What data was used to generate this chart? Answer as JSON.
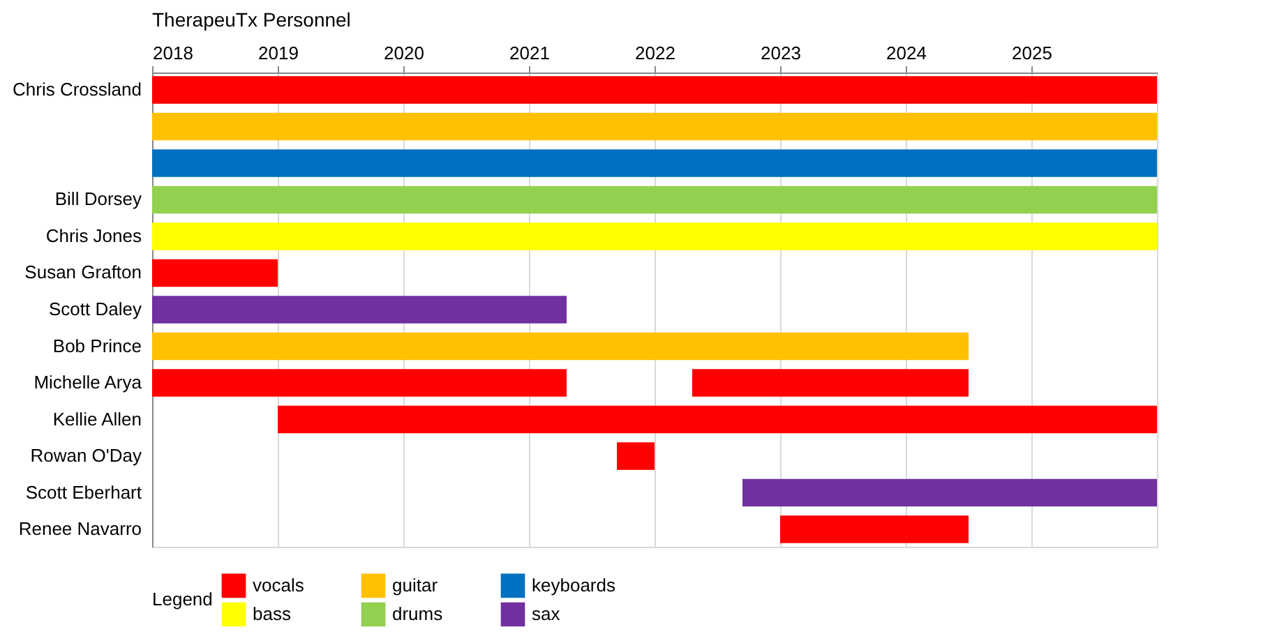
{
  "chart_data": {
    "type": "bar",
    "orientation": "horizontal",
    "title": "TherapeuTx Personnel",
    "legend_title": "Legend",
    "legend": "bottom",
    "grid": "x",
    "categories": [
      "Chris Crossland",
      null,
      null,
      "Bill Dorsey",
      "Chris Jones",
      "Susan Grafton",
      "Scott Daley",
      "Bob Prince",
      "Michelle Arya",
      "Kellie Allen",
      "Rowan O'Day",
      "Scott Eberhart",
      "Renee Navarro"
    ],
    "xlim": [
      2018,
      2026
    ],
    "xticks": [
      2018,
      2019,
      2020,
      2021,
      2022,
      2023,
      2024,
      2025
    ],
    "series": [
      {
        "name": "vocals",
        "color": "#ff0000",
        "values": [
          8,
          null,
          null,
          null,
          null,
          1,
          null,
          null,
          3.3,
          7,
          0.3,
          null,
          1.5
        ],
        "base": [
          2018,
          null,
          null,
          null,
          null,
          2018,
          null,
          null,
          2018,
          2019,
          2021.7,
          null,
          2023
        ]
      },
      {
        "color": "#ff0000",
        "values": [
          null,
          null,
          null,
          null,
          null,
          null,
          null,
          null,
          2.2,
          null,
          null,
          null,
          null
        ],
        "base": [
          null,
          null,
          null,
          null,
          null,
          null,
          null,
          null,
          2022.3,
          null,
          null,
          null,
          null
        ]
      },
      {
        "name": "guitar",
        "color": "#ffc000",
        "values": [
          null,
          8,
          null,
          null,
          null,
          null,
          null,
          6.5,
          null,
          null,
          null,
          null,
          null
        ],
        "base": [
          null,
          2018,
          null,
          null,
          null,
          null,
          null,
          2018,
          null,
          null,
          null,
          null,
          null
        ]
      },
      {
        "name": "keyboards",
        "color": "#0070c0",
        "values": [
          null,
          null,
          8,
          null,
          null,
          null,
          null,
          null,
          null,
          null,
          null,
          null,
          null
        ],
        "base": [
          null,
          null,
          2018,
          null,
          null,
          null,
          null,
          null,
          null,
          null,
          null,
          null,
          null
        ]
      },
      {
        "name": "bass",
        "color": "#ffff00",
        "values": [
          null,
          null,
          null,
          null,
          8,
          null,
          null,
          null,
          null,
          null,
          null,
          null,
          null
        ],
        "base": [
          null,
          null,
          null,
          null,
          2018,
          null,
          null,
          null,
          null,
          null,
          null,
          null,
          null
        ]
      },
      {
        "name": "drums",
        "color": "#92d050",
        "values": [
          null,
          null,
          null,
          8,
          null,
          null,
          null,
          null,
          null,
          null,
          null,
          null,
          null
        ],
        "base": [
          null,
          null,
          null,
          2018,
          null,
          null,
          null,
          null,
          null,
          null,
          null,
          null,
          null
        ]
      },
      {
        "name": "sax",
        "color": "#7030a0",
        "values": [
          null,
          null,
          null,
          null,
          null,
          null,
          3.3,
          null,
          null,
          null,
          null,
          3.3,
          null
        ],
        "base": [
          null,
          null,
          null,
          null,
          null,
          null,
          2018,
          null,
          null,
          null,
          null,
          2022.7,
          null
        ]
      }
    ]
  }
}
